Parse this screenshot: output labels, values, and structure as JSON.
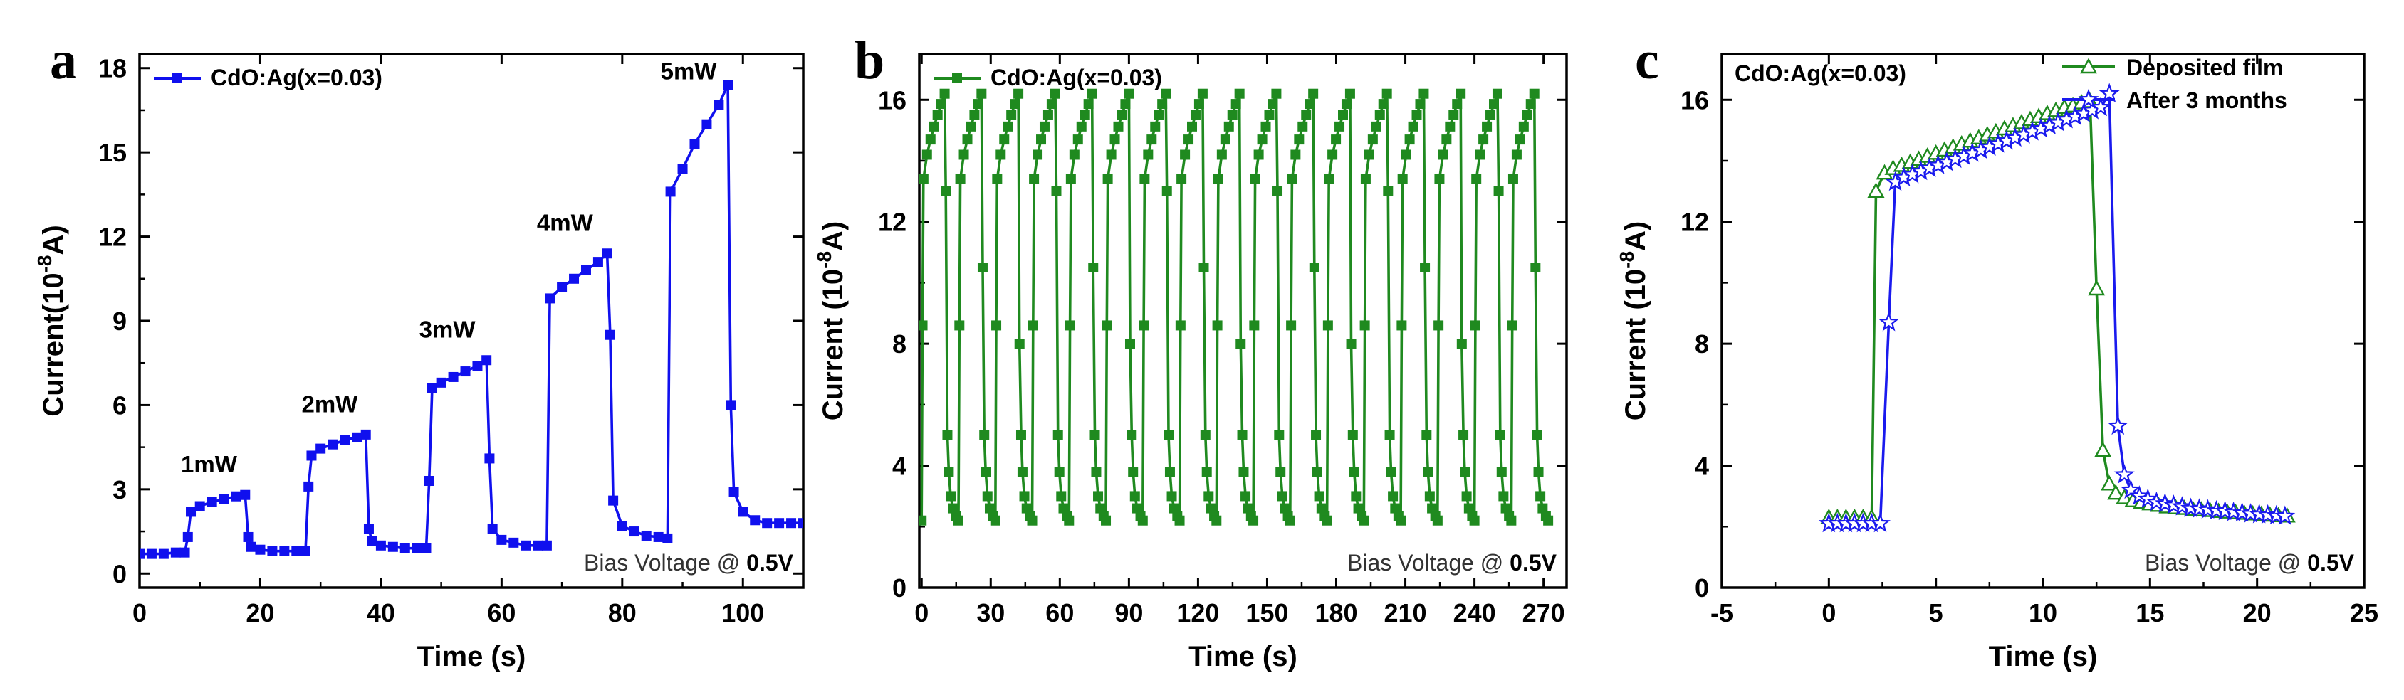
{
  "chart_data": [
    {
      "type": "line",
      "panel": "a",
      "xlabel": "Time (s)",
      "ylabel_prefix": "Current(10",
      "ylabel_sup": "-8",
      "ylabel_suffix": "A)",
      "xlim": [
        0,
        110
      ],
      "ylim": [
        -0.5,
        18.5
      ],
      "xticks": [
        0,
        20,
        40,
        60,
        80,
        100
      ],
      "yticks": [
        0,
        3,
        6,
        9,
        12,
        15,
        18
      ],
      "legend": "top-left",
      "bias": {
        "prefix": "Bias Voltage @ ",
        "value": "0.5V"
      },
      "series": [
        {
          "name": "CdO:Ag(x=0.03)",
          "color": "#1010ee",
          "marker": "square",
          "points": [
            [
              0,
              0.7
            ],
            [
              2,
              0.7
            ],
            [
              4,
              0.7
            ],
            [
              6,
              0.75
            ],
            [
              7.5,
              0.75
            ],
            [
              8,
              1.3
            ],
            [
              8.5,
              2.2
            ],
            [
              10,
              2.4
            ],
            [
              12,
              2.55
            ],
            [
              14,
              2.65
            ],
            [
              16,
              2.75
            ],
            [
              17.5,
              2.8
            ],
            [
              18,
              1.3
            ],
            [
              18.5,
              0.95
            ],
            [
              20,
              0.85
            ],
            [
              22,
              0.8
            ],
            [
              24,
              0.8
            ],
            [
              26,
              0.8
            ],
            [
              27.5,
              0.8
            ],
            [
              28,
              3.1
            ],
            [
              28.5,
              4.2
            ],
            [
              30,
              4.45
            ],
            [
              32,
              4.6
            ],
            [
              34,
              4.75
            ],
            [
              36,
              4.85
            ],
            [
              37.5,
              4.95
            ],
            [
              38,
              1.6
            ],
            [
              38.5,
              1.15
            ],
            [
              40,
              1.0
            ],
            [
              42,
              0.95
            ],
            [
              44,
              0.9
            ],
            [
              46,
              0.9
            ],
            [
              47.5,
              0.9
            ],
            [
              48,
              3.3
            ],
            [
              48.5,
              6.6
            ],
            [
              50,
              6.8
            ],
            [
              52,
              7.0
            ],
            [
              54,
              7.2
            ],
            [
              56,
              7.4
            ],
            [
              57.5,
              7.6
            ],
            [
              58,
              4.1
            ],
            [
              58.5,
              1.6
            ],
            [
              60,
              1.2
            ],
            [
              62,
              1.1
            ],
            [
              64,
              1.0
            ],
            [
              66,
              1.0
            ],
            [
              67.5,
              1.0
            ],
            [
              68,
              9.8
            ],
            [
              70,
              10.2
            ],
            [
              72,
              10.5
            ],
            [
              74,
              10.8
            ],
            [
              76,
              11.1
            ],
            [
              77.5,
              11.4
            ],
            [
              78,
              8.5
            ],
            [
              78.5,
              2.6
            ],
            [
              80,
              1.7
            ],
            [
              82,
              1.5
            ],
            [
              84,
              1.35
            ],
            [
              86,
              1.3
            ],
            [
              87.5,
              1.25
            ],
            [
              88,
              13.6
            ],
            [
              90,
              14.4
            ],
            [
              92,
              15.3
            ],
            [
              94,
              16.0
            ],
            [
              96,
              16.7
            ],
            [
              97.5,
              17.4
            ],
            [
              98,
              6.0
            ],
            [
              98.5,
              2.9
            ],
            [
              100,
              2.2
            ],
            [
              102,
              1.9
            ],
            [
              104,
              1.8
            ],
            [
              106,
              1.8
            ],
            [
              108,
              1.8
            ],
            [
              110,
              1.8
            ]
          ]
        }
      ],
      "annotations": [
        {
          "text": "1mW",
          "x": 11.5,
          "y": 3.6
        },
        {
          "text": "2mW",
          "x": 31.5,
          "y": 5.75
        },
        {
          "text": "3mW",
          "x": 51,
          "y": 8.4
        },
        {
          "text": "4mW",
          "x": 70.5,
          "y": 12.2
        },
        {
          "text": "5mW",
          "x": 91,
          "y": 17.6
        }
      ]
    },
    {
      "type": "line",
      "panel": "b",
      "xlabel": "Time (s)",
      "ylabel_prefix": "Current (10",
      "ylabel_sup": "-8",
      "ylabel_suffix": "A)",
      "xlim": [
        -1,
        280
      ],
      "ylim": [
        0,
        17.5
      ],
      "xticks": [
        0,
        30,
        60,
        90,
        120,
        150,
        180,
        210,
        240,
        270
      ],
      "yticks": [
        0,
        4,
        8,
        12,
        16
      ],
      "legend": "top-left",
      "bias": {
        "prefix": "Bias Voltage @ ",
        "value": "0.5V"
      },
      "cycle": {
        "period": 16,
        "on_time": 10,
        "count": 17,
        "start": 0,
        "i_dark": 2.2,
        "i_on_start": 13.4,
        "i_on_peak": 16.2
      },
      "series": [
        {
          "name": "CdO:Ag(x=0.03)",
          "color": "#1f8a1f",
          "marker": "square"
        }
      ]
    },
    {
      "type": "line",
      "panel": "c",
      "title_text": "CdO:Ag(x=0.03)",
      "xlabel": "Time (s)",
      "ylabel_prefix": "Current (10",
      "ylabel_sup": "-8",
      "ylabel_suffix": "A)",
      "xlim": [
        -5,
        25
      ],
      "ylim": [
        0,
        17.5
      ],
      "xticks": [
        -5,
        0,
        5,
        10,
        15,
        20,
        25
      ],
      "yticks": [
        0,
        4,
        8,
        12,
        16
      ],
      "legend": "top-right",
      "bias": {
        "prefix": "Bias Voltage @ ",
        "value": "0.5V"
      },
      "series": [
        {
          "name": "Deposited film",
          "color": "#1f8a1f",
          "marker": "triangle",
          "points": [
            [
              0,
              2.3
            ],
            [
              0.4,
              2.3
            ],
            [
              0.8,
              2.3
            ],
            [
              1.2,
              2.3
            ],
            [
              1.6,
              2.3
            ],
            [
              2,
              2.3
            ],
            [
              2.2,
              13.0
            ],
            [
              2.6,
              13.6
            ],
            [
              3,
              13.75
            ],
            [
              3.4,
              13.85
            ],
            [
              3.8,
              13.95
            ],
            [
              4.2,
              14.05
            ],
            [
              4.6,
              14.15
            ],
            [
              5,
              14.25
            ],
            [
              5.4,
              14.35
            ],
            [
              5.8,
              14.45
            ],
            [
              6.2,
              14.55
            ],
            [
              6.6,
              14.65
            ],
            [
              7,
              14.75
            ],
            [
              7.4,
              14.85
            ],
            [
              7.8,
              14.95
            ],
            [
              8.2,
              15.05
            ],
            [
              8.6,
              15.15
            ],
            [
              9,
              15.25
            ],
            [
              9.4,
              15.35
            ],
            [
              9.8,
              15.45
            ],
            [
              10.2,
              15.55
            ],
            [
              10.6,
              15.65
            ],
            [
              11,
              15.75
            ],
            [
              11.4,
              15.8
            ],
            [
              11.8,
              15.9
            ],
            [
              12.2,
              15.95
            ],
            [
              12.5,
              9.8
            ],
            [
              12.8,
              4.5
            ],
            [
              13.1,
              3.4
            ],
            [
              13.4,
              3.1
            ],
            [
              13.8,
              2.95
            ],
            [
              14.2,
              2.85
            ],
            [
              14.6,
              2.8
            ],
            [
              15,
              2.75
            ],
            [
              15.4,
              2.7
            ],
            [
              15.8,
              2.65
            ],
            [
              16.2,
              2.62
            ],
            [
              16.6,
              2.6
            ],
            [
              17,
              2.57
            ],
            [
              17.4,
              2.55
            ],
            [
              17.8,
              2.53
            ],
            [
              18.2,
              2.5
            ],
            [
              18.6,
              2.48
            ],
            [
              19,
              2.46
            ],
            [
              19.4,
              2.44
            ],
            [
              19.8,
              2.42
            ],
            [
              20.2,
              2.4
            ],
            [
              20.6,
              2.38
            ],
            [
              21,
              2.36
            ],
            [
              21.4,
              2.35
            ]
          ]
        },
        {
          "name": "After 3 months",
          "color": "#1a1aee",
          "marker": "star",
          "points": [
            [
              0,
              2.1
            ],
            [
              0.4,
              2.1
            ],
            [
              0.8,
              2.1
            ],
            [
              1.2,
              2.1
            ],
            [
              1.6,
              2.1
            ],
            [
              2,
              2.1
            ],
            [
              2.4,
              2.1
            ],
            [
              2.8,
              8.7
            ],
            [
              3.1,
              13.3
            ],
            [
              3.5,
              13.45
            ],
            [
              3.9,
              13.55
            ],
            [
              4.3,
              13.65
            ],
            [
              4.7,
              13.75
            ],
            [
              5.1,
              13.85
            ],
            [
              5.5,
              13.95
            ],
            [
              5.9,
              14.05
            ],
            [
              6.3,
              14.15
            ],
            [
              6.7,
              14.25
            ],
            [
              7.1,
              14.35
            ],
            [
              7.5,
              14.45
            ],
            [
              7.9,
              14.55
            ],
            [
              8.3,
              14.65
            ],
            [
              8.7,
              14.75
            ],
            [
              9.1,
              14.85
            ],
            [
              9.5,
              14.95
            ],
            [
              9.9,
              15.05
            ],
            [
              10.3,
              15.15
            ],
            [
              10.7,
              15.25
            ],
            [
              11.1,
              15.35
            ],
            [
              11.5,
              15.45
            ],
            [
              11.9,
              15.55
            ],
            [
              12.3,
              15.65
            ],
            [
              12.7,
              15.75
            ],
            [
              13.1,
              16.2
            ],
            [
              13.5,
              5.3
            ],
            [
              13.8,
              3.7
            ],
            [
              14.1,
              3.2
            ],
            [
              14.5,
              3.0
            ],
            [
              14.9,
              2.9
            ],
            [
              15.3,
              2.8
            ],
            [
              15.7,
              2.75
            ],
            [
              16.1,
              2.7
            ],
            [
              16.5,
              2.65
            ],
            [
              16.9,
              2.6
            ],
            [
              17.3,
              2.58
            ],
            [
              17.7,
              2.55
            ],
            [
              18.1,
              2.52
            ],
            [
              18.5,
              2.5
            ],
            [
              18.9,
              2.47
            ],
            [
              19.3,
              2.45
            ],
            [
              19.7,
              2.42
            ],
            [
              20.1,
              2.4
            ],
            [
              20.5,
              2.38
            ],
            [
              20.9,
              2.36
            ],
            [
              21.3,
              2.34
            ]
          ]
        }
      ]
    }
  ]
}
